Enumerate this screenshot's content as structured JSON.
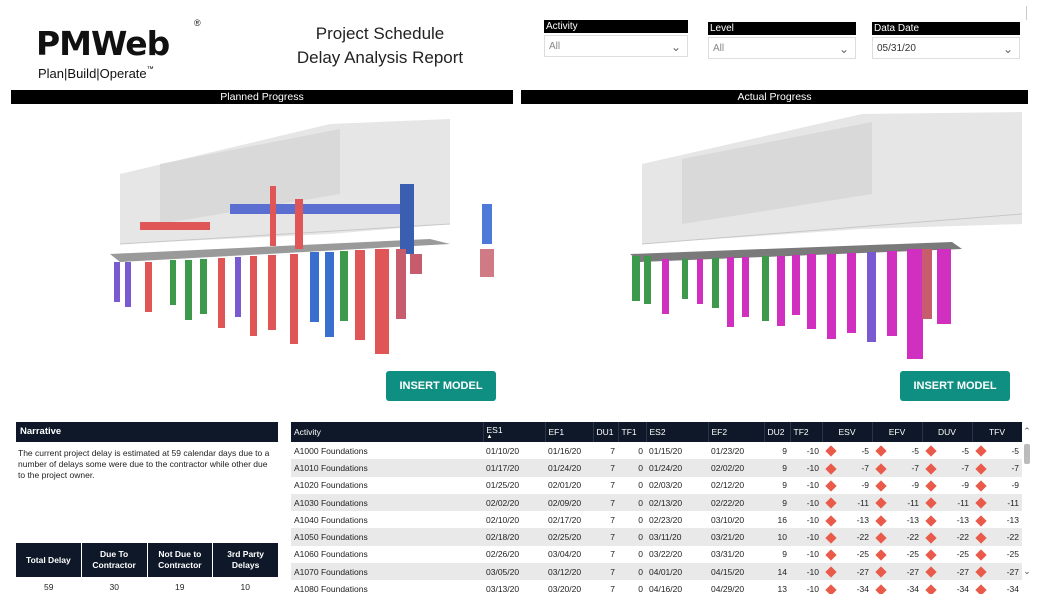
{
  "logo": {
    "brand": "PMWeb",
    "registered": "®",
    "tagline": "Plan|Build|Operate",
    "tm": "™"
  },
  "title": {
    "line1": "Project Schedule",
    "line2": "Delay Analysis Report"
  },
  "filters": [
    {
      "label": "Activity",
      "value": "All"
    },
    {
      "label": "Level",
      "value": "All"
    },
    {
      "label": "Data Date",
      "value": "05/31/20"
    }
  ],
  "planned": {
    "header": "Planned Progress",
    "button": "INSERT MODEL"
  },
  "actual": {
    "header": "Actual Progress",
    "button": "INSERT MODEL"
  },
  "narrative": {
    "header": "Narrative",
    "text": "The current project delay is estimated at 59 calendar days due to a number of delays some were due to the contractor while other due to the project owner."
  },
  "delay_summary": {
    "headers": [
      "Total Delay",
      "Due To Contractor",
      "Not Due to Contractor",
      "3rd Party Delays"
    ],
    "values": [
      "59",
      "30",
      "19",
      "10"
    ]
  },
  "table": {
    "columns": [
      "Activity",
      "ES1",
      "EF1",
      "DU1",
      "TF1",
      "ES2",
      "EF2",
      "DU2",
      "TF2",
      "ESV",
      "EFV",
      "DUV",
      "TFV"
    ],
    "rows": [
      [
        "A1000 Foundations",
        "01/10/20",
        "01/16/20",
        "7",
        "0",
        "01/15/20",
        "01/23/20",
        "9",
        "-10",
        "-5",
        "-5",
        "-5",
        "-5"
      ],
      [
        "A1010 Foundations",
        "01/17/20",
        "01/24/20",
        "7",
        "0",
        "01/24/20",
        "02/02/20",
        "9",
        "-10",
        "-7",
        "-7",
        "-7",
        "-7"
      ],
      [
        "A1020 Foundations",
        "01/25/20",
        "02/01/20",
        "7",
        "0",
        "02/03/20",
        "02/12/20",
        "9",
        "-10",
        "-9",
        "-9",
        "-9",
        "-9"
      ],
      [
        "A1030 Foundations",
        "02/02/20",
        "02/09/20",
        "7",
        "0",
        "02/13/20",
        "02/22/20",
        "9",
        "-10",
        "-11",
        "-11",
        "-11",
        "-11"
      ],
      [
        "A1040 Foundations",
        "02/10/20",
        "02/17/20",
        "7",
        "0",
        "02/23/20",
        "03/10/20",
        "16",
        "-10",
        "-13",
        "-13",
        "-13",
        "-13"
      ],
      [
        "A1050 Foundations",
        "02/18/20",
        "02/25/20",
        "7",
        "0",
        "03/11/20",
        "03/21/20",
        "10",
        "-10",
        "-22",
        "-22",
        "-22",
        "-22"
      ],
      [
        "A1060 Foundations",
        "02/26/20",
        "03/04/20",
        "7",
        "0",
        "03/22/20",
        "03/31/20",
        "9",
        "-10",
        "-25",
        "-25",
        "-25",
        "-25"
      ],
      [
        "A1070 Foundations",
        "03/05/20",
        "03/12/20",
        "7",
        "0",
        "04/01/20",
        "04/15/20",
        "14",
        "-10",
        "-27",
        "-27",
        "-27",
        "-27"
      ],
      [
        "A1080 Foundations",
        "03/13/20",
        "03/20/20",
        "7",
        "0",
        "04/16/20",
        "04/29/20",
        "13",
        "-10",
        "-34",
        "-34",
        "-34",
        "-34"
      ]
    ]
  },
  "scroll": {
    "up": "⌃",
    "down": "⌄"
  },
  "colors": {
    "accent": "#0f8f81",
    "header_dark": "#0e1828",
    "variance": "#ea5a4a",
    "green_logo": "#3fae49"
  }
}
